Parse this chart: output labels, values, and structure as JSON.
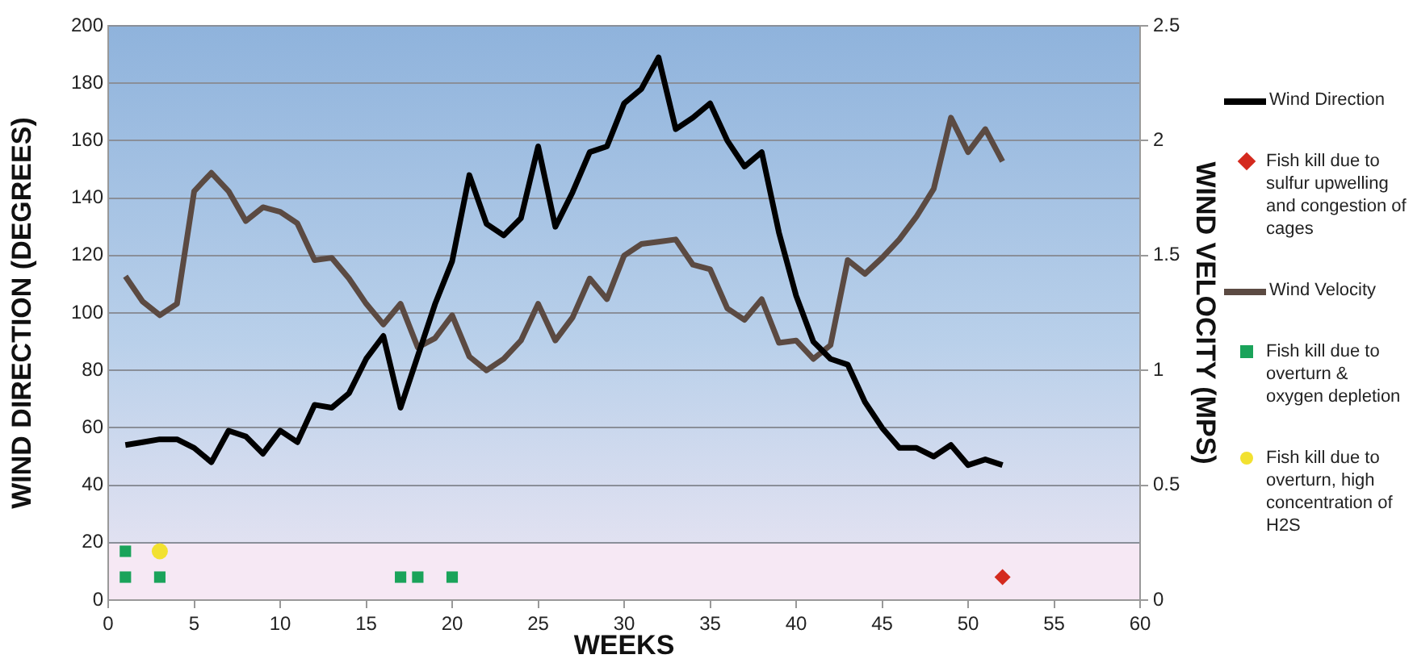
{
  "chart_data": {
    "type": "line",
    "xlabel": "WEEKS",
    "ylabel": "WIND DIRECTION (DEGREES)",
    "y2label": "WIND VELOCITY (MPS)",
    "xlim": [
      0,
      60
    ],
    "xticks": [
      0,
      5,
      10,
      15,
      20,
      25,
      30,
      35,
      40,
      45,
      50,
      55,
      60
    ],
    "ylim": [
      0,
      200
    ],
    "yticks": [
      0,
      20,
      40,
      60,
      80,
      100,
      120,
      140,
      160,
      180,
      200
    ],
    "y2lim": [
      0,
      2.5
    ],
    "y2ticks": [
      0,
      0.5,
      1,
      1.5,
      2,
      2.5
    ],
    "grid": "y",
    "legend": "right",
    "marker": "none",
    "line_style": "solid",
    "bands": [
      {
        "axis": "y",
        "from": 0,
        "to": 20,
        "color": "#f6e8f4"
      }
    ],
    "x": [
      1,
      2,
      3,
      4,
      5,
      6,
      7,
      8,
      9,
      10,
      11,
      12,
      13,
      14,
      15,
      16,
      17,
      18,
      19,
      20,
      21,
      22,
      23,
      24,
      25,
      26,
      27,
      28,
      29,
      30,
      31,
      32,
      33,
      34,
      35,
      36,
      37,
      38,
      39,
      40,
      41,
      42,
      43,
      44,
      45,
      46,
      47,
      48,
      49,
      50,
      51,
      52
    ],
    "series": [
      {
        "name": "Wind Direction",
        "color": "#000000",
        "values": [
          54,
          55,
          56,
          56,
          53,
          48,
          59,
          57,
          51,
          59,
          55,
          68,
          67,
          72,
          84,
          92,
          67,
          85,
          103,
          118,
          148,
          131,
          127,
          133,
          158,
          130,
          142,
          156,
          158,
          173,
          178,
          189,
          164,
          168,
          173,
          160,
          151,
          156,
          128,
          106,
          90,
          84,
          82,
          69,
          60,
          53,
          53,
          50,
          54,
          47,
          49,
          47
        ]
      },
      {
        "name": "Fish kill due to sulfur upwelling and congestion of cages",
        "type": "scatter",
        "marker": "diamond",
        "color": "#d42a1e",
        "x": [
          52
        ],
        "values": [
          8
        ]
      },
      {
        "name": "Wind Velocity",
        "axis": "y2",
        "color": "#5b4a42",
        "values": [
          1.41,
          1.3,
          1.24,
          1.29,
          1.78,
          1.86,
          1.78,
          1.65,
          1.71,
          1.69,
          1.64,
          1.48,
          1.49,
          1.4,
          1.29,
          1.2,
          1.29,
          1.1,
          1.14,
          1.24,
          1.06,
          1.0,
          1.05,
          1.13,
          1.29,
          1.13,
          1.23,
          1.4,
          1.31,
          1.5,
          1.55,
          1.56,
          1.57,
          1.46,
          1.44,
          1.27,
          1.22,
          1.31,
          1.12,
          1.13,
          1.05,
          1.11,
          1.48,
          1.42,
          1.49,
          1.57,
          1.67,
          1.79,
          2.1,
          1.95,
          2.05,
          1.91
        ]
      },
      {
        "name": "Fish kill due to overturn & oxygen depletion",
        "type": "scatter",
        "marker": "square",
        "color": "#1aa35a",
        "x": [
          1,
          1,
          3,
          17,
          18,
          20
        ],
        "values": [
          8,
          17,
          8,
          8,
          8,
          8
        ]
      },
      {
        "name": "Fish kill due to overturn, high concentration of H2S",
        "type": "scatter",
        "marker": "circle",
        "color": "#f2e130",
        "x": [
          3
        ],
        "values": [
          17
        ]
      }
    ]
  }
}
